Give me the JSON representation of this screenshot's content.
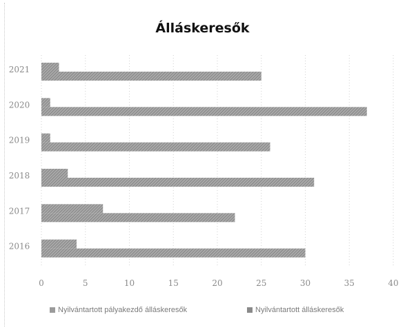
{
  "chart_data": {
    "type": "bar",
    "orientation": "horizontal",
    "title": "Álláskeresők",
    "categories": [
      "2021",
      "2020",
      "2019",
      "2018",
      "2017",
      "2016"
    ],
    "series": [
      {
        "name": "Nyilvántartott pályakezdő álláskeresők",
        "values": [
          2,
          1,
          1,
          3,
          7,
          4
        ],
        "color": "#9b9b9b"
      },
      {
        "name": "Nyilvántartott álláskeresők",
        "values": [
          25,
          37,
          26,
          31,
          22,
          30
        ],
        "color": "#8a8a8a"
      }
    ],
    "xlim": [
      0,
      40
    ],
    "xticks": [
      0,
      5,
      10,
      15,
      20,
      25,
      30,
      35,
      40
    ],
    "grid": "vertical",
    "legend_position": "bottom"
  }
}
